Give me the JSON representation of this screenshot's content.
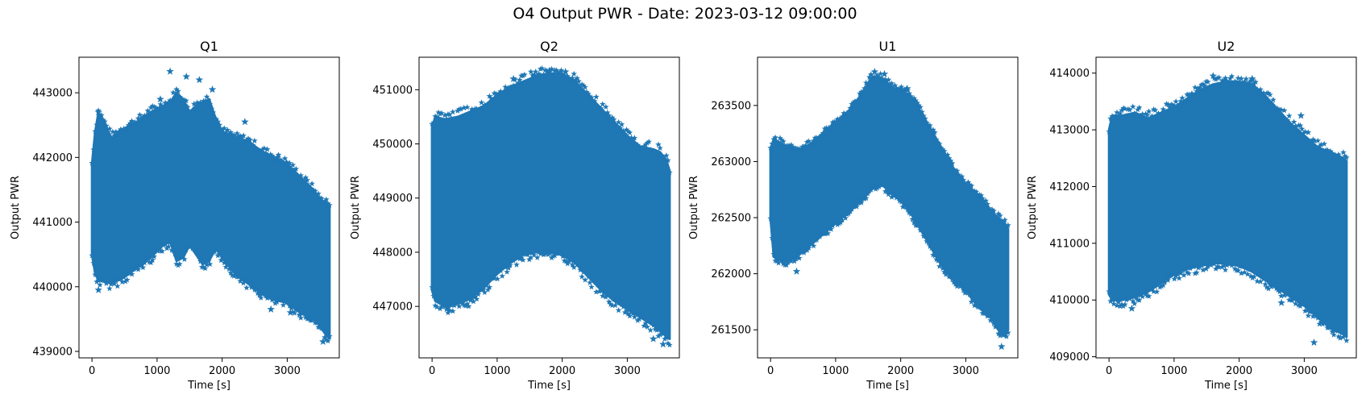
{
  "suptitle": "O4 Output PWR - Date: 2023-03-12 09:00:00",
  "colors": {
    "marker": "#1f77b4",
    "axes": "#000000"
  },
  "chart_data": [
    {
      "type": "scatter",
      "title": "Q1",
      "xlabel": "Time [s]",
      "ylabel": "Output PWR",
      "xlim": [
        -200,
        3800
      ],
      "ylim": [
        438900,
        443550
      ],
      "xticks": [
        0,
        1000,
        2000,
        3000
      ],
      "yticks": [
        439000,
        440000,
        441000,
        442000,
        443000
      ],
      "grid": false,
      "band": {
        "x": [
          0,
          50,
          100,
          300,
          500,
          700,
          900,
          1100,
          1200,
          1300,
          1400,
          1500,
          1600,
          1700,
          1800,
          1900,
          2000,
          2200,
          2400,
          2600,
          2800,
          3000,
          3200,
          3400,
          3500,
          3600,
          3650
        ],
        "upper": [
          441900,
          442400,
          442700,
          442300,
          442450,
          442550,
          442700,
          442800,
          442850,
          443000,
          442900,
          442700,
          442800,
          442850,
          442900,
          442600,
          442400,
          442300,
          442250,
          442100,
          442000,
          441900,
          441700,
          441500,
          441350,
          441300,
          441250
        ],
        "lower": [
          440500,
          440200,
          440100,
          440050,
          440150,
          440300,
          440450,
          440650,
          440700,
          440400,
          440450,
          440650,
          440500,
          440350,
          440400,
          440600,
          440450,
          440200,
          440050,
          439900,
          439800,
          439750,
          439600,
          439500,
          439400,
          439250,
          439200
        ]
      },
      "outliers": [
        [
          1200,
          443330
        ],
        [
          1450,
          443250
        ],
        [
          1650,
          443200
        ],
        [
          1850,
          443050
        ],
        [
          100,
          442700
        ],
        [
          1050,
          442900
        ],
        [
          2350,
          442550
        ],
        [
          2850,
          442000
        ],
        [
          100,
          439950
        ],
        [
          2750,
          439650
        ],
        [
          3050,
          439600
        ],
        [
          3550,
          439150
        ]
      ]
    },
    {
      "type": "scatter",
      "title": "Q2",
      "xlabel": "Time [s]",
      "ylabel": "Output PWR",
      "xlim": [
        -200,
        3800
      ],
      "ylim": [
        446050,
        451600
      ],
      "xticks": [
        0,
        1000,
        2000,
        3000
      ],
      "yticks": [
        447000,
        448000,
        449000,
        450000,
        451000
      ],
      "grid": false,
      "band": {
        "x": [
          0,
          50,
          200,
          400,
          600,
          800,
          1000,
          1200,
          1400,
          1600,
          1800,
          2000,
          2200,
          2400,
          2600,
          2800,
          3000,
          3200,
          3400,
          3500,
          3600,
          3650
        ],
        "upper": [
          450300,
          450500,
          450450,
          450500,
          450600,
          450700,
          450900,
          451050,
          451150,
          451250,
          451300,
          451300,
          451150,
          450900,
          450650,
          450400,
          450150,
          449950,
          449900,
          449850,
          449700,
          449500
        ],
        "lower": [
          447300,
          447100,
          447000,
          447050,
          447150,
          447350,
          447600,
          447800,
          447950,
          448000,
          448000,
          447950,
          447800,
          447550,
          447300,
          447100,
          446950,
          446800,
          446650,
          446550,
          446450,
          446400
        ]
      },
      "outliers": [
        [
          1800,
          451350
        ],
        [
          2050,
          451330
        ],
        [
          1250,
          451200
        ],
        [
          3400,
          446400
        ],
        [
          3550,
          446300
        ],
        [
          250,
          446980
        ]
      ]
    },
    {
      "type": "scatter",
      "title": "U1",
      "xlabel": "Time [s]",
      "ylabel": "Output PWR",
      "xlim": [
        -200,
        3800
      ],
      "ylim": [
        261250,
        263930
      ],
      "xticks": [
        0,
        1000,
        2000,
        3000
      ],
      "yticks": [
        261500,
        262000,
        262500,
        263000,
        263500
      ],
      "grid": false,
      "band": {
        "x": [
          0,
          50,
          200,
          400,
          600,
          800,
          1000,
          1200,
          1400,
          1550,
          1700,
          1800,
          1900,
          2000,
          2200,
          2400,
          2600,
          2800,
          3000,
          3200,
          3400,
          3500,
          3600,
          3650
        ],
        "upper": [
          263100,
          263200,
          263150,
          263100,
          263150,
          263250,
          263350,
          263450,
          263600,
          263750,
          263750,
          263700,
          263650,
          263650,
          263550,
          263350,
          263150,
          262950,
          262800,
          262700,
          262550,
          262500,
          262450,
          262400
        ],
        "lower": [
          262500,
          262150,
          262100,
          262150,
          262250,
          262350,
          262450,
          262550,
          262650,
          262750,
          262800,
          262750,
          262700,
          262650,
          262500,
          262300,
          262100,
          261950,
          261850,
          261700,
          261600,
          261500,
          261450,
          261500
        ]
      },
      "outliers": [
        [
          1600,
          263800
        ],
        [
          1750,
          263780
        ],
        [
          2100,
          263650
        ],
        [
          3550,
          261350
        ],
        [
          400,
          262020
        ]
      ]
    },
    {
      "type": "scatter",
      "title": "U2",
      "xlabel": "Time [s]",
      "ylabel": "Output PWR",
      "xlim": [
        -200,
        3800
      ],
      "ylim": [
        408980,
        414280
      ],
      "xticks": [
        0,
        1000,
        2000,
        3000
      ],
      "yticks": [
        409000,
        410000,
        411000,
        412000,
        413000,
        414000
      ],
      "grid": false,
      "band": {
        "x": [
          0,
          50,
          200,
          400,
          600,
          800,
          1000,
          1200,
          1400,
          1600,
          1800,
          2000,
          2200,
          2400,
          2600,
          2800,
          3000,
          3200,
          3400,
          3500,
          3600,
          3650
        ],
        "upper": [
          413000,
          413250,
          413250,
          413300,
          413200,
          413300,
          413400,
          413550,
          413700,
          413800,
          413850,
          413850,
          413800,
          413600,
          413350,
          413100,
          412900,
          412700,
          412600,
          412550,
          412500,
          412450
        ],
        "lower": [
          410100,
          410000,
          410000,
          410050,
          410150,
          410300,
          410450,
          410550,
          410600,
          410650,
          410650,
          410600,
          410500,
          410350,
          410200,
          410050,
          409900,
          409700,
          409500,
          409450,
          409400,
          409350
        ]
      },
      "outliers": [
        [
          1600,
          413950
        ],
        [
          2200,
          413900
        ],
        [
          2950,
          413250
        ],
        [
          3150,
          409250
        ],
        [
          350,
          409850
        ],
        [
          2650,
          409950
        ]
      ]
    }
  ]
}
